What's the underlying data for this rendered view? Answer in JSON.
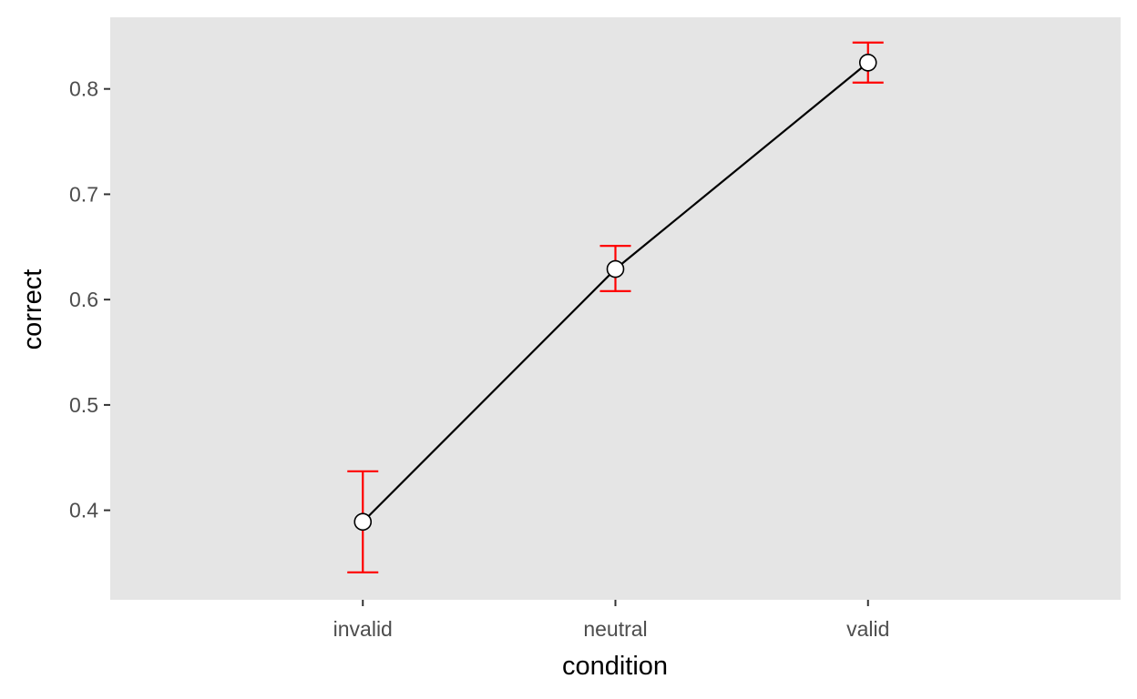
{
  "chart_data": {
    "type": "line",
    "xlabel": "condition",
    "ylabel": "correct",
    "categories": [
      "invalid",
      "neutral",
      "valid"
    ],
    "values": [
      0.389,
      0.629,
      0.825
    ],
    "error_low": [
      0.341,
      0.608,
      0.806
    ],
    "error_high": [
      0.437,
      0.651,
      0.844
    ],
    "ylim": [
      0.315,
      0.868
    ],
    "yticks": [
      0.4,
      0.5,
      0.6,
      0.7,
      0.8
    ],
    "ytick_labels": [
      "0.4",
      "0.5",
      "0.6",
      "0.7",
      "0.8"
    ],
    "grid": false,
    "legend": "none",
    "colors": {
      "panel": "#e5e5e5",
      "line": "#000000",
      "errorbar": "#ff0000",
      "point_fill": "#ffffff",
      "point_stroke": "#000000",
      "tick": "#333333",
      "tick_text": "#4d4d4d"
    }
  }
}
